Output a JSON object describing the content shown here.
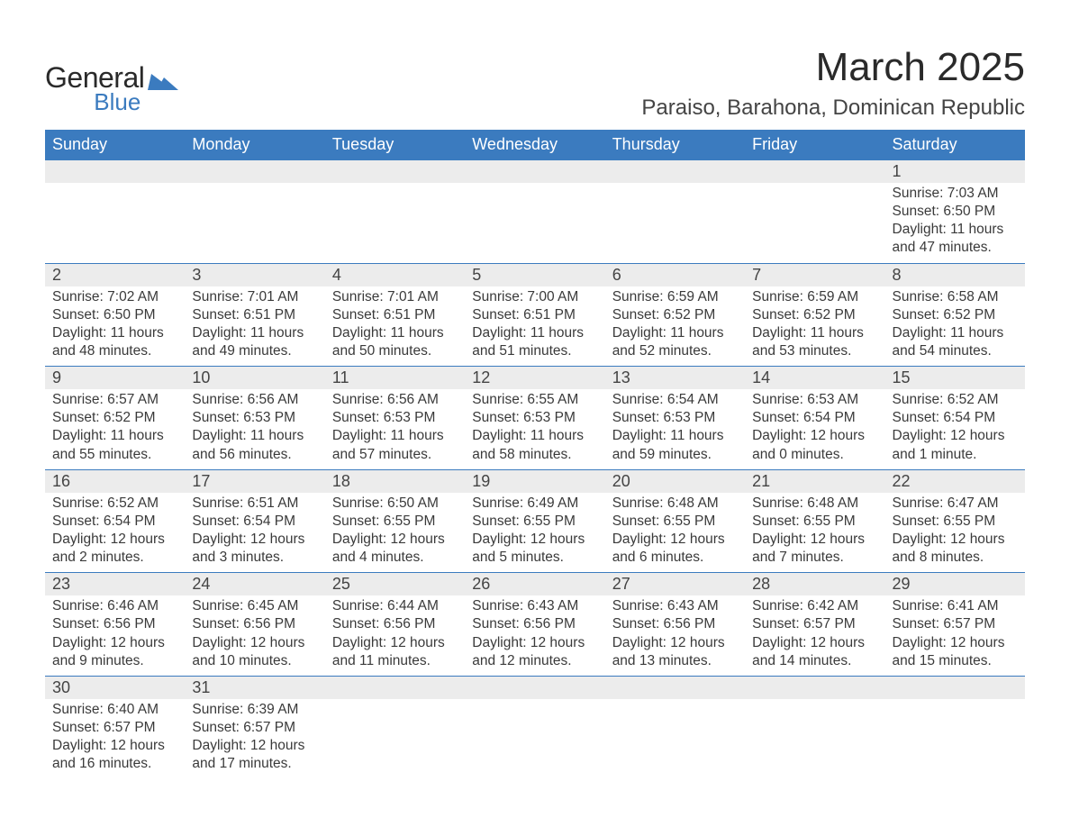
{
  "brand": {
    "name1": "General",
    "name2": "Blue",
    "color": "#3b7bbf"
  },
  "title": "March 2025",
  "location": "Paraiso, Barahona, Dominican Republic",
  "header_color": "#3b7bbf",
  "weekdays": [
    "Sunday",
    "Monday",
    "Tuesday",
    "Wednesday",
    "Thursday",
    "Friday",
    "Saturday"
  ],
  "first_weekday_index": 6,
  "days": [
    {
      "n": 1,
      "sunrise": "7:03 AM",
      "sunset": "6:50 PM",
      "daylight": "11 hours and 47 minutes."
    },
    {
      "n": 2,
      "sunrise": "7:02 AM",
      "sunset": "6:50 PM",
      "daylight": "11 hours and 48 minutes."
    },
    {
      "n": 3,
      "sunrise": "7:01 AM",
      "sunset": "6:51 PM",
      "daylight": "11 hours and 49 minutes."
    },
    {
      "n": 4,
      "sunrise": "7:01 AM",
      "sunset": "6:51 PM",
      "daylight": "11 hours and 50 minutes."
    },
    {
      "n": 5,
      "sunrise": "7:00 AM",
      "sunset": "6:51 PM",
      "daylight": "11 hours and 51 minutes."
    },
    {
      "n": 6,
      "sunrise": "6:59 AM",
      "sunset": "6:52 PM",
      "daylight": "11 hours and 52 minutes."
    },
    {
      "n": 7,
      "sunrise": "6:59 AM",
      "sunset": "6:52 PM",
      "daylight": "11 hours and 53 minutes."
    },
    {
      "n": 8,
      "sunrise": "6:58 AM",
      "sunset": "6:52 PM",
      "daylight": "11 hours and 54 minutes."
    },
    {
      "n": 9,
      "sunrise": "6:57 AM",
      "sunset": "6:52 PM",
      "daylight": "11 hours and 55 minutes."
    },
    {
      "n": 10,
      "sunrise": "6:56 AM",
      "sunset": "6:53 PM",
      "daylight": "11 hours and 56 minutes."
    },
    {
      "n": 11,
      "sunrise": "6:56 AM",
      "sunset": "6:53 PM",
      "daylight": "11 hours and 57 minutes."
    },
    {
      "n": 12,
      "sunrise": "6:55 AM",
      "sunset": "6:53 PM",
      "daylight": "11 hours and 58 minutes."
    },
    {
      "n": 13,
      "sunrise": "6:54 AM",
      "sunset": "6:53 PM",
      "daylight": "11 hours and 59 minutes."
    },
    {
      "n": 14,
      "sunrise": "6:53 AM",
      "sunset": "6:54 PM",
      "daylight": "12 hours and 0 minutes."
    },
    {
      "n": 15,
      "sunrise": "6:52 AM",
      "sunset": "6:54 PM",
      "daylight": "12 hours and 1 minute."
    },
    {
      "n": 16,
      "sunrise": "6:52 AM",
      "sunset": "6:54 PM",
      "daylight": "12 hours and 2 minutes."
    },
    {
      "n": 17,
      "sunrise": "6:51 AM",
      "sunset": "6:54 PM",
      "daylight": "12 hours and 3 minutes."
    },
    {
      "n": 18,
      "sunrise": "6:50 AM",
      "sunset": "6:55 PM",
      "daylight": "12 hours and 4 minutes."
    },
    {
      "n": 19,
      "sunrise": "6:49 AM",
      "sunset": "6:55 PM",
      "daylight": "12 hours and 5 minutes."
    },
    {
      "n": 20,
      "sunrise": "6:48 AM",
      "sunset": "6:55 PM",
      "daylight": "12 hours and 6 minutes."
    },
    {
      "n": 21,
      "sunrise": "6:48 AM",
      "sunset": "6:55 PM",
      "daylight": "12 hours and 7 minutes."
    },
    {
      "n": 22,
      "sunrise": "6:47 AM",
      "sunset": "6:55 PM",
      "daylight": "12 hours and 8 minutes."
    },
    {
      "n": 23,
      "sunrise": "6:46 AM",
      "sunset": "6:56 PM",
      "daylight": "12 hours and 9 minutes."
    },
    {
      "n": 24,
      "sunrise": "6:45 AM",
      "sunset": "6:56 PM",
      "daylight": "12 hours and 10 minutes."
    },
    {
      "n": 25,
      "sunrise": "6:44 AM",
      "sunset": "6:56 PM",
      "daylight": "12 hours and 11 minutes."
    },
    {
      "n": 26,
      "sunrise": "6:43 AM",
      "sunset": "6:56 PM",
      "daylight": "12 hours and 12 minutes."
    },
    {
      "n": 27,
      "sunrise": "6:43 AM",
      "sunset": "6:56 PM",
      "daylight": "12 hours and 13 minutes."
    },
    {
      "n": 28,
      "sunrise": "6:42 AM",
      "sunset": "6:57 PM",
      "daylight": "12 hours and 14 minutes."
    },
    {
      "n": 29,
      "sunrise": "6:41 AM",
      "sunset": "6:57 PM",
      "daylight": "12 hours and 15 minutes."
    },
    {
      "n": 30,
      "sunrise": "6:40 AM",
      "sunset": "6:57 PM",
      "daylight": "12 hours and 16 minutes."
    },
    {
      "n": 31,
      "sunrise": "6:39 AM",
      "sunset": "6:57 PM",
      "daylight": "12 hours and 17 minutes."
    }
  ],
  "labels": {
    "sunrise": "Sunrise:",
    "sunset": "Sunset:",
    "daylight": "Daylight:"
  }
}
